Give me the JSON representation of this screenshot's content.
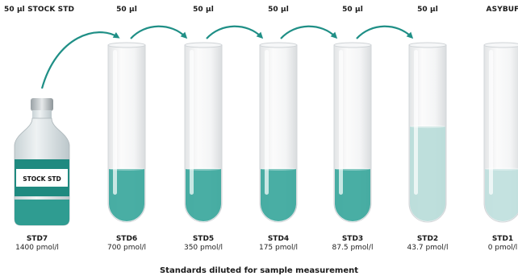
{
  "stock_label": "50 µl STOCK STD",
  "bottle_label": "STOCK STD",
  "caption": "Standards diluted for sample measurement",
  "colors": {
    "liquid_dark": "#3aa79c",
    "liquid_light": "#b9dcd9",
    "arrow": "#1f8f86",
    "glass": "#f3f4f5"
  },
  "transfers": [
    "50 µl",
    "50 µl",
    "50 µl",
    "50 µl",
    "50 µl",
    "ASYBUF"
  ],
  "standards": [
    {
      "name": "STD7",
      "conc": "1400 pmol/l"
    },
    {
      "name": "STD6",
      "conc": "700 pmol/l",
      "fill_level": 0.3
    },
    {
      "name": "STD5",
      "conc": "350 pmol/l",
      "fill_level": 0.3
    },
    {
      "name": "STD4",
      "conc": "175 pmol/l",
      "fill_level": 0.3
    },
    {
      "name": "STD3",
      "conc": "87.5 pmol/l",
      "fill_level": 0.3
    },
    {
      "name": "STD2",
      "conc": "43.7 pmol/l",
      "fill_level": 0.54
    },
    {
      "name": "STD1",
      "conc": "0 pmol/l",
      "fill_level": 0.3
    }
  ]
}
